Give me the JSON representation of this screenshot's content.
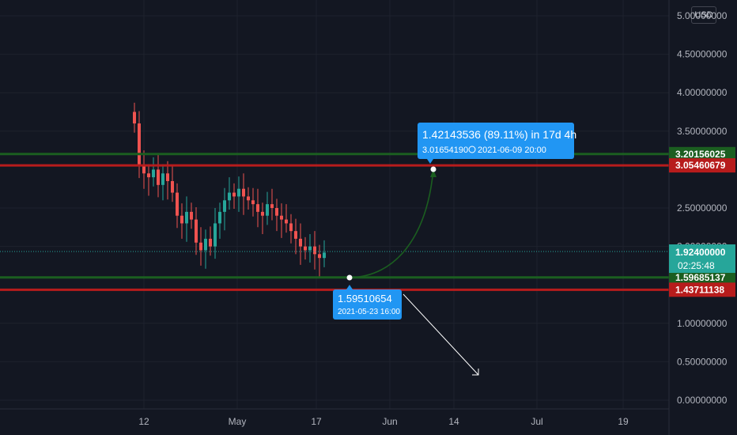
{
  "currency_button": "USD",
  "chart_data": {
    "type": "candlestick",
    "ylim": [
      -0.1,
      5.2
    ],
    "y_ticks": [
      "5.00000000",
      "4.50000000",
      "4.00000000",
      "3.50000000",
      "2.50000000",
      "2.00000000",
      "1.00000000",
      "0.50000000",
      "0.00000000"
    ],
    "x_ticks": [
      "12",
      "May",
      "17",
      "Jun",
      "14",
      "Jul",
      "19"
    ],
    "last_price": {
      "label": "1.92400000",
      "countdown": "02:25:48"
    },
    "levels": [
      {
        "label": "3.20156025",
        "value": 3.20156025,
        "color": "#1b5e20"
      },
      {
        "label": "3.05460679",
        "value": 3.05460679,
        "color": "#b71c1c"
      },
      {
        "label": "1.59685137",
        "value": 1.59685137,
        "color": "#1b5e20"
      },
      {
        "label": "1.43711138",
        "value": 1.43711138,
        "color": "#b71c1c"
      }
    ],
    "projection_up": {
      "headline": "1.42143536 (89.11%) in 17d 4h",
      "detail_value": "3.01654190",
      "detail_time": "2021-06-09  20:00"
    },
    "projection_low": {
      "value": "1.59510654",
      "time": "2021-05-23 16:00"
    },
    "colors": {
      "up": "#26a69a",
      "down": "#ef5350",
      "bg": "#131722",
      "callout": "#2196f3"
    }
  }
}
